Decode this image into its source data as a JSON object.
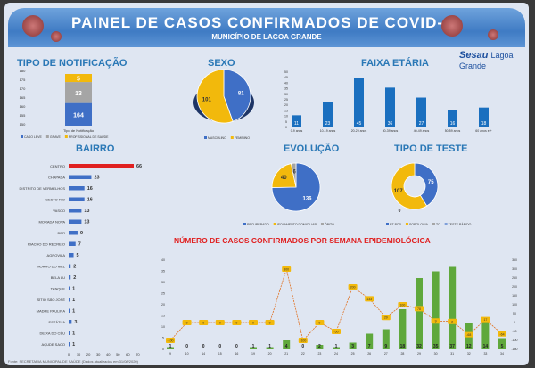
{
  "header": {
    "title": "PAINEL DE CASOS CONFIRMADOS DE COVID-19",
    "subtitle": "MUNICÍPIO DE LAGOA GRANDE"
  },
  "logo": {
    "brand": "Sesau",
    "city": "Lagoa Grande"
  },
  "footer": "Fonte: SECRETARIA MUNICIPAL DE SAÚDE (Dados atualizados em 31/08/2020)",
  "colors": {
    "blue": "#3f6fc6",
    "yellow": "#f2b90c",
    "gray": "#a5a5a5",
    "red": "#e02020",
    "green": "#5fa83c",
    "bar": "#1a6fbf"
  },
  "chart_data": [
    {
      "id": "notificacao",
      "type": "bar",
      "title": "TIPO DE NOTIFICAÇÃO",
      "xlabel": "Tipo de Notificação",
      "categories": [
        "Tipo de Notificação"
      ],
      "series": [
        {
          "name": "CASO LEVE",
          "values": [
            164
          ]
        },
        {
          "name": "GRAVE",
          "values": [
            13
          ]
        },
        {
          "name": "PROFISSIONAL DE SAÚDE",
          "values": [
            5
          ]
        }
      ]
    },
    {
      "id": "sexo",
      "type": "pie",
      "title": "SEXO",
      "labels": [
        "MASCULINO",
        "FEMININO"
      ],
      "values": [
        81,
        101
      ]
    },
    {
      "id": "faixa",
      "type": "bar",
      "title": "FAIXA ETÁRIA",
      "categories": [
        "0-9 anos",
        "10-19 anos",
        "20-29 anos",
        "30-39 anos",
        "40-49 anos",
        "50-59 anos",
        "60 anos e +"
      ],
      "values": [
        11,
        23,
        45,
        36,
        27,
        16,
        18
      ],
      "ylim": [
        0,
        50
      ]
    },
    {
      "id": "bairro",
      "type": "bar",
      "orientation": "horizontal",
      "title": "BAIRRO",
      "categories": [
        "CENTRO",
        "CHAPADA",
        "DISTRITO DE VERMELHOS",
        "CESTO RIO",
        "VASCO",
        "MORADA NOVA",
        "DER",
        "RIACHO DO RECREIO",
        "AGROVILA",
        "MORRO DO MEL",
        "BELA LU",
        "TANQUE",
        "SÍTIO SÃO JOSÉ",
        "MADRE PAULINA",
        "ESTÁTUA",
        "DEIXA DO CÉU",
        "AÇUDE SACO"
      ],
      "values": [
        66,
        23,
        16,
        16,
        13,
        13,
        9,
        7,
        5,
        2,
        2,
        1,
        1,
        1,
        3,
        1,
        1
      ],
      "xticks": [
        0,
        10,
        20,
        30,
        40,
        50,
        60,
        70
      ]
    },
    {
      "id": "evolucao",
      "type": "pie",
      "title": "EVOLUÇÃO",
      "labels": [
        "RECUPERADO",
        "ISOLAMENTO DOMICILIAR",
        "ÓBITO"
      ],
      "values": [
        136,
        40,
        6
      ]
    },
    {
      "id": "teste",
      "type": "pie",
      "title": "TIPO DE TESTE",
      "labels": [
        "RT-PCR",
        "SOROLOGIA",
        "TC",
        "TESTE RÁPIDO"
      ],
      "values": [
        75,
        107,
        0,
        0
      ]
    },
    {
      "id": "semana",
      "type": "bar",
      "title": "NÚMERO DE CASOS CONFIRMADOS POR SEMANA EPIDEMIOLÓGICA",
      "categories": [
        "9",
        "10",
        "14",
        "15",
        "16",
        "19",
        "20",
        "21",
        "22",
        "23",
        "24",
        "25",
        "26",
        "27",
        "28",
        "29",
        "30",
        "31",
        "32",
        "33",
        "34"
      ],
      "values": [
        1,
        0,
        0,
        0,
        0,
        1,
        1,
        4,
        0,
        2,
        1,
        3,
        7,
        9,
        18,
        32,
        35,
        37,
        12,
        14,
        5
      ],
      "ylim": [
        0,
        40
      ],
      "line": {
        "name": "Variação %",
        "values": [
          -100,
          0,
          0,
          0,
          0,
          0,
          0,
          300,
          -100,
          0,
          -50,
          200,
          133,
          29,
          100,
          78,
          9,
          6,
          -68,
          17,
          -64
        ],
        "ylim": [
          -150,
          350
        ]
      }
    }
  ]
}
